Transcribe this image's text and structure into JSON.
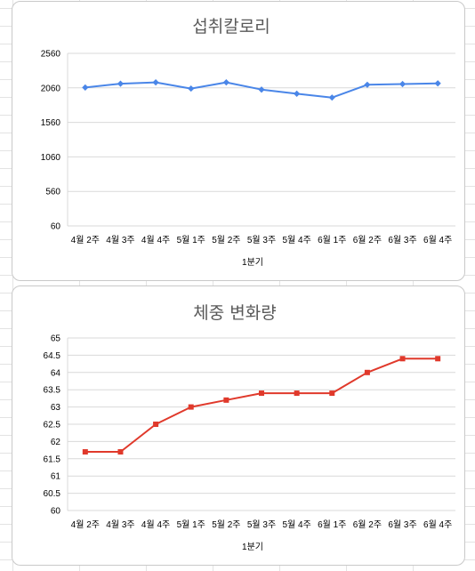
{
  "chart_data": [
    {
      "type": "line",
      "title": "섭취칼로리",
      "xlabel": "1분기",
      "ylabel": "",
      "categories": [
        "4월 2주",
        "4월 3주",
        "4월 4주",
        "5월 1주",
        "5월 2주",
        "5월 3주",
        "5월 4주",
        "6월 1주",
        "6월 2주",
        "6월 3주",
        "6월 4주"
      ],
      "series": [
        {
          "values": [
            2065,
            2120,
            2140,
            2050,
            2140,
            2035,
            1975,
            1920,
            2105,
            2115,
            2125
          ]
        }
      ],
      "ylim": [
        60,
        2560
      ],
      "yticks": [
        "2560",
        "2060",
        "1560",
        "1060",
        "560",
        "60"
      ],
      "marker": "diamond",
      "color": "#4a86e8",
      "grid": true,
      "legend": "none"
    },
    {
      "type": "line",
      "title": "체중 변화량",
      "xlabel": "1분기",
      "ylabel": "",
      "categories": [
        "4월 2주",
        "4월 3주",
        "4월 4주",
        "5월 1주",
        "5월 2주",
        "5월 3주",
        "5월 4주",
        "6월 1주",
        "6월 2주",
        "6월 3주",
        "6월 4주"
      ],
      "series": [
        {
          "values": [
            61.7,
            61.7,
            62.5,
            63.0,
            63.2,
            63.4,
            63.4,
            63.4,
            64.0,
            64.4,
            64.4
          ]
        }
      ],
      "ylim": [
        60,
        65
      ],
      "yticks": [
        "65",
        "64.5",
        "64",
        "63.5",
        "63",
        "62.5",
        "62",
        "61.5",
        "61",
        "60.5",
        "60"
      ],
      "marker": "square",
      "color": "#e0392b",
      "grid": true,
      "legend": "none"
    }
  ]
}
